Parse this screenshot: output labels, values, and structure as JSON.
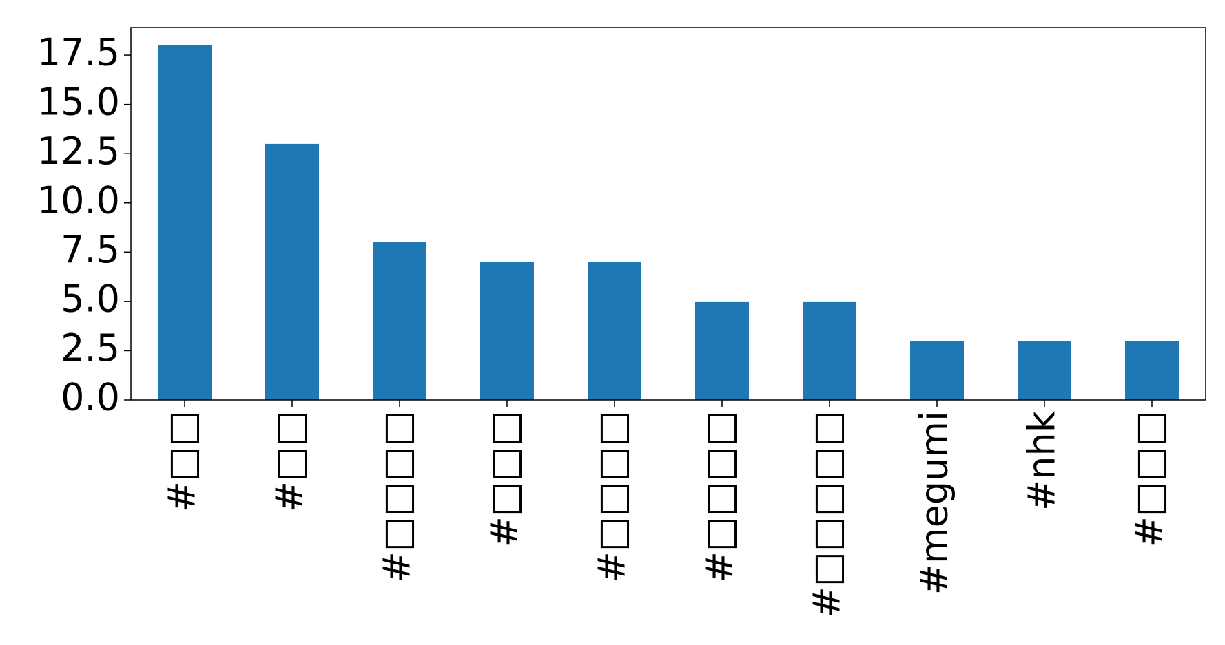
{
  "chart_data": {
    "type": "bar",
    "categories": [
      "#□□",
      "#□□",
      "#□□□□",
      "#□□□",
      "#□□□□",
      "#□□□□",
      "#□□□□□",
      "#megumi",
      "#nhk",
      "#□□□"
    ],
    "values": [
      18,
      13,
      8,
      7,
      7,
      5,
      5,
      3,
      3,
      3
    ],
    "color": "#1f77b4",
    "ylim": [
      0,
      18.9
    ],
    "yticks": [
      {
        "value": 0,
        "label": "0.0"
      },
      2.5,
      {
        "value": 5,
        "label": "5.0"
      },
      7.5,
      {
        "value": 10,
        "label": "10.0"
      },
      12.5,
      {
        "value": 15,
        "label": "15.0"
      },
      17.5
    ]
  }
}
